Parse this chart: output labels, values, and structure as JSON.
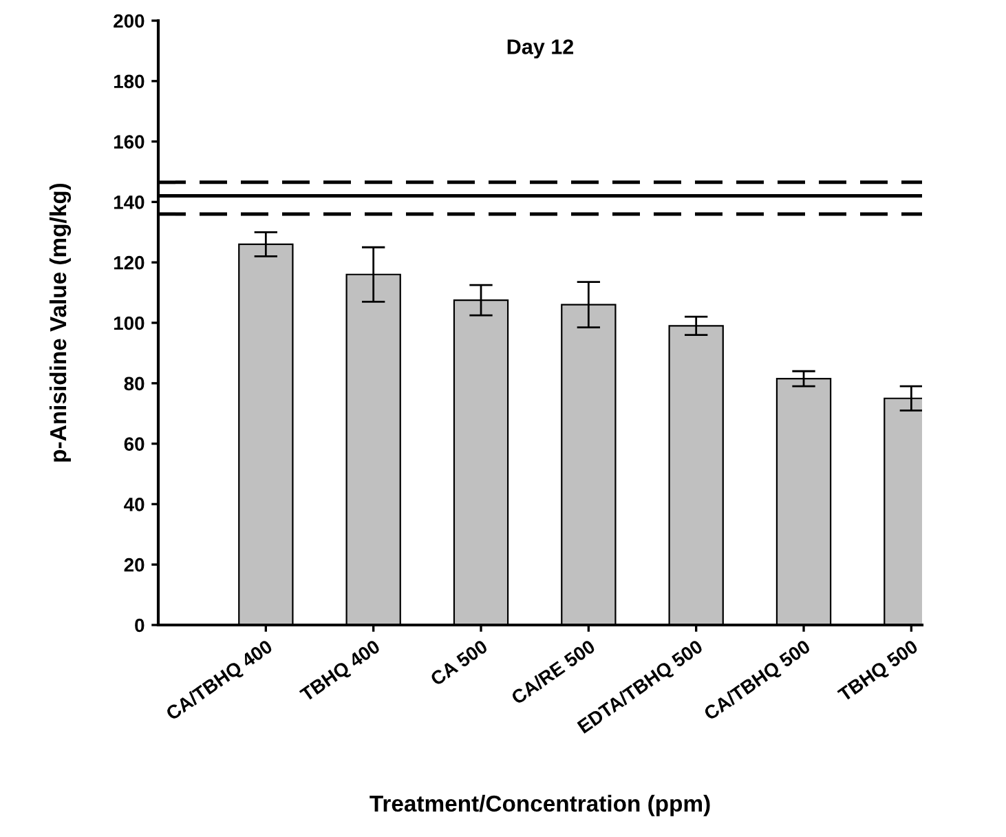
{
  "chart_data": {
    "type": "bar",
    "title": "Day 12",
    "xlabel": "Treatment/Concentration (ppm)",
    "ylabel": "p-Anisidine Value (mg/kg)",
    "categories": [
      "CA/TBHQ 400",
      "TBHQ 400",
      "CA 500",
      "CA/RE 500",
      "EDTA/TBHQ 500",
      "CA/TBHQ 500",
      "TBHQ 500"
    ],
    "values": [
      126,
      116,
      107.5,
      106,
      99,
      81.5,
      75
    ],
    "errors": [
      4,
      9,
      5,
      7.5,
      3,
      2.5,
      4
    ],
    "color": "#c0c0c0",
    "ylim": [
      0,
      200
    ],
    "yticks": [
      0,
      20,
      40,
      60,
      80,
      100,
      120,
      140,
      160,
      180,
      200
    ],
    "ref_lines": [
      {
        "axis": "y",
        "value": 146.5,
        "line_style": "dashed"
      },
      {
        "axis": "y",
        "value": 142,
        "line_style": "solid"
      },
      {
        "axis": "y",
        "value": 136,
        "line_style": "dashed"
      }
    ],
    "grid": false,
    "legend": false
  }
}
